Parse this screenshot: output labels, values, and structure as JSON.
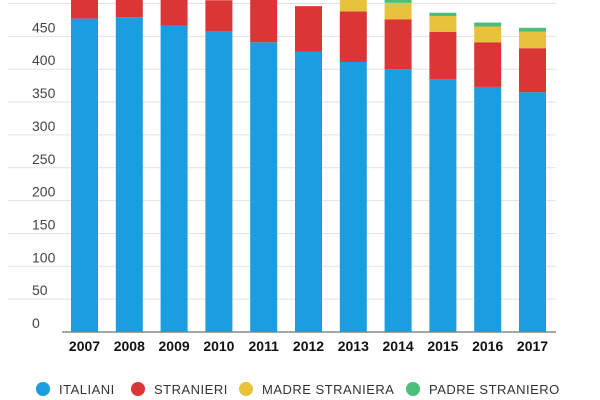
{
  "chart_data": {
    "type": "bar",
    "stacked": true,
    "categories": [
      "2007",
      "2008",
      "2009",
      "2010",
      "2011",
      "2012",
      "2013",
      "2014",
      "2015",
      "2016",
      "2017"
    ],
    "yticks": [
      "0",
      "50",
      "100",
      "150",
      "200",
      "250",
      "300",
      "350",
      "400",
      "450"
    ],
    "ylim": [
      0,
      505
    ],
    "grid": true,
    "legend_position": "bottom",
    "series": [
      {
        "name": "ITALIANI",
        "color": "#1a9ee0",
        "values": [
          477,
          479,
          466,
          457,
          441,
          427,
          411,
          400,
          385,
          373,
          365
        ]
      },
      {
        "name": "STRANIERI",
        "color": "#da3636",
        "values": [
          40,
          40,
          40,
          48,
          67,
          69,
          77,
          76,
          72,
          68,
          67
        ]
      },
      {
        "name": "MADRE STRANIERA",
        "color": "#e8c23a",
        "values": [
          0,
          0,
          0,
          0,
          0,
          0,
          25,
          25,
          24,
          24,
          25
        ]
      },
      {
        "name": "PADRE STRANIERO",
        "color": "#4bbf7a",
        "values": [
          0,
          0,
          0,
          0,
          0,
          0,
          0,
          5,
          5,
          6,
          6
        ]
      }
    ]
  }
}
